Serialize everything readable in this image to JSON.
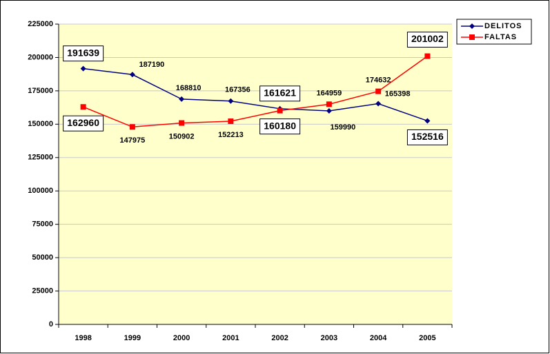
{
  "chart_data": {
    "type": "line",
    "categories": [
      "1998",
      "1999",
      "2000",
      "2001",
      "2002",
      "2003",
      "2004",
      "2005"
    ],
    "series": [
      {
        "name": "DELITOS",
        "color": "#000080",
        "marker": "diamond",
        "values": [
          191639,
          187190,
          168810,
          167356,
          161621,
          159990,
          165398,
          152516
        ]
      },
      {
        "name": "FALTAS",
        "color": "#ff0000",
        "marker": "square",
        "values": [
          162960,
          147975,
          150902,
          152213,
          160180,
          164959,
          174632,
          201002
        ]
      }
    ],
    "ylim": [
      0,
      225000
    ],
    "yticks": [
      0,
      25000,
      50000,
      75000,
      100000,
      125000,
      150000,
      175000,
      200000,
      225000
    ],
    "grid": true,
    "legend": "top-right",
    "plot_background": "#ffffcc"
  }
}
